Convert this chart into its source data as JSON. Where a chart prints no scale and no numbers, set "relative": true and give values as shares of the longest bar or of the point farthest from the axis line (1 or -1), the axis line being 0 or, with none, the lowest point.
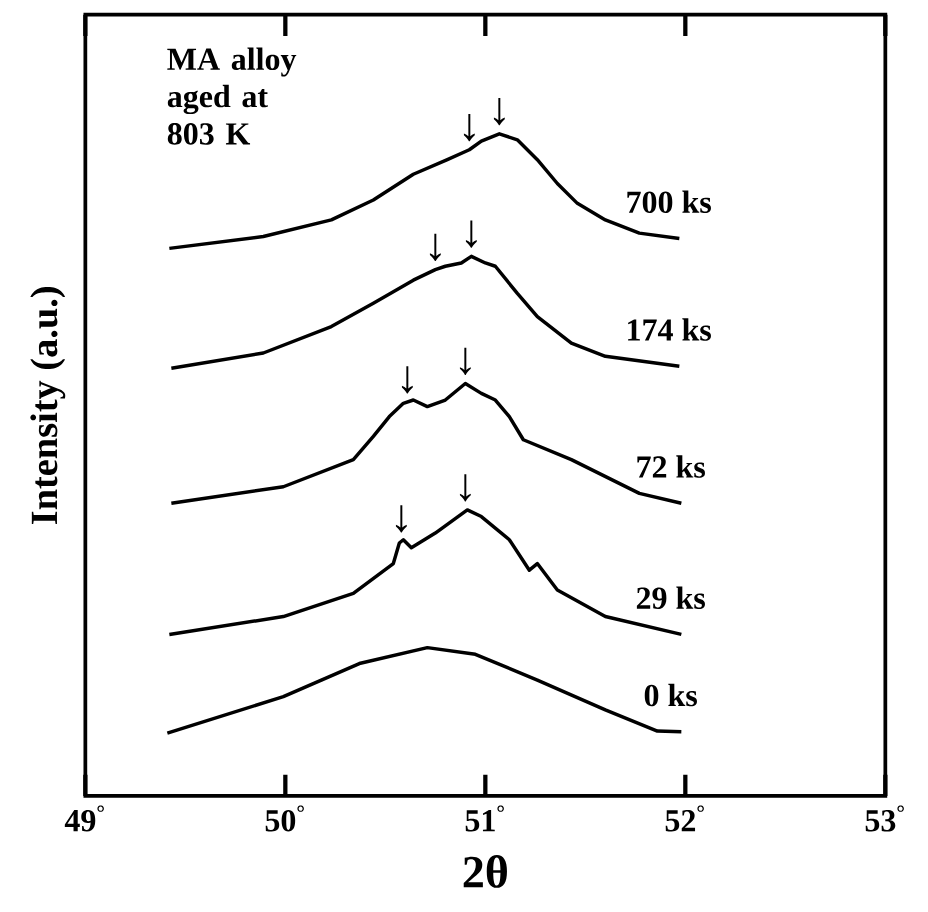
{
  "chart_data": {
    "type": "line",
    "relative": true,
    "xlabel": "2θ",
    "ylabel": "Intensity (a.u.)",
    "xlim": [
      49,
      53
    ],
    "xticks": [
      {
        "value": 49,
        "label": "49$^{°}$"
      },
      {
        "value": 50,
        "label": "50$^{°}$"
      },
      {
        "value": 51,
        "label": "51$^{°}$"
      },
      {
        "value": 52,
        "label": "52$^{°}$"
      },
      {
        "value": 53,
        "label": "53$^{°}$"
      }
    ],
    "tick_labels": "x",
    "grid": false,
    "legend": false,
    "marker": "none",
    "line_style": "solid",
    "series": [
      {
        "name": "700 ks",
        "color": "#000000",
        "x": [
          49.42,
          49.89,
          50.23,
          50.44,
          50.64,
          50.81,
          50.92,
          50.98,
          51.07,
          51.16,
          51.26,
          51.36,
          51.46,
          51.6,
          51.77,
          51.97
        ],
        "values": [
          0.827,
          0.845,
          0.87,
          0.9,
          0.939,
          0.961,
          0.976,
          0.989,
          1.0,
          0.991,
          0.961,
          0.925,
          0.895,
          0.87,
          0.85,
          0.842
        ]
      },
      {
        "name": "174 ks",
        "color": "#000000",
        "x": [
          49.43,
          49.89,
          50.23,
          50.44,
          50.64,
          50.75,
          50.8,
          50.88,
          50.93,
          51.0,
          51.05,
          51.16,
          51.26,
          51.43,
          51.6,
          51.97
        ],
        "values": [
          0.646,
          0.669,
          0.709,
          0.744,
          0.779,
          0.795,
          0.8,
          0.805,
          0.815,
          0.805,
          0.8,
          0.759,
          0.724,
          0.684,
          0.664,
          0.649
        ]
      },
      {
        "name": "72 ks",
        "color": "#000000",
        "x": [
          49.43,
          49.99,
          50.34,
          50.44,
          50.52,
          50.59,
          50.64,
          50.71,
          50.8,
          50.9,
          50.98,
          51.05,
          51.12,
          51.19,
          51.43,
          51.77,
          51.98
        ],
        "values": [
          0.442,
          0.467,
          0.508,
          0.543,
          0.573,
          0.593,
          0.598,
          0.588,
          0.598,
          0.623,
          0.608,
          0.598,
          0.573,
          0.538,
          0.508,
          0.457,
          0.442
        ]
      },
      {
        "name": "29 ks",
        "color": "#000000",
        "x": [
          49.42,
          49.99,
          50.34,
          50.54,
          50.57,
          50.59,
          50.63,
          50.75,
          50.91,
          50.98,
          51.12,
          51.22,
          51.26,
          51.36,
          51.6,
          51.98
        ],
        "values": [
          0.244,
          0.271,
          0.306,
          0.351,
          0.382,
          0.387,
          0.375,
          0.397,
          0.432,
          0.422,
          0.387,
          0.341,
          0.351,
          0.311,
          0.271,
          0.244
        ]
      },
      {
        "name": "0 ks",
        "color": "#000000",
        "x": [
          49.41,
          49.99,
          50.37,
          50.71,
          50.95,
          51.26,
          51.6,
          51.86,
          51.98
        ],
        "values": [
          0.095,
          0.15,
          0.2,
          0.224,
          0.214,
          0.175,
          0.13,
          0.098,
          0.097
        ]
      }
    ],
    "annotations": [
      "MA alloy\naged at\n803 K",
      {
        "text": "↓",
        "x": 50.92,
        "y": 0.976
      },
      {
        "text": "↓",
        "x": 51.07,
        "y": 1.0
      },
      {
        "text": "↓",
        "x": 50.75,
        "y": 0.795
      },
      {
        "text": "↓",
        "x": 50.93,
        "y": 0.815
      },
      {
        "text": "↓",
        "x": 50.61,
        "y": 0.595
      },
      {
        "text": "↓",
        "x": 50.9,
        "y": 0.623
      },
      {
        "text": "↓",
        "x": 50.58,
        "y": 0.385
      },
      {
        "text": "↓",
        "x": 50.9,
        "y": 0.432
      }
    ]
  }
}
